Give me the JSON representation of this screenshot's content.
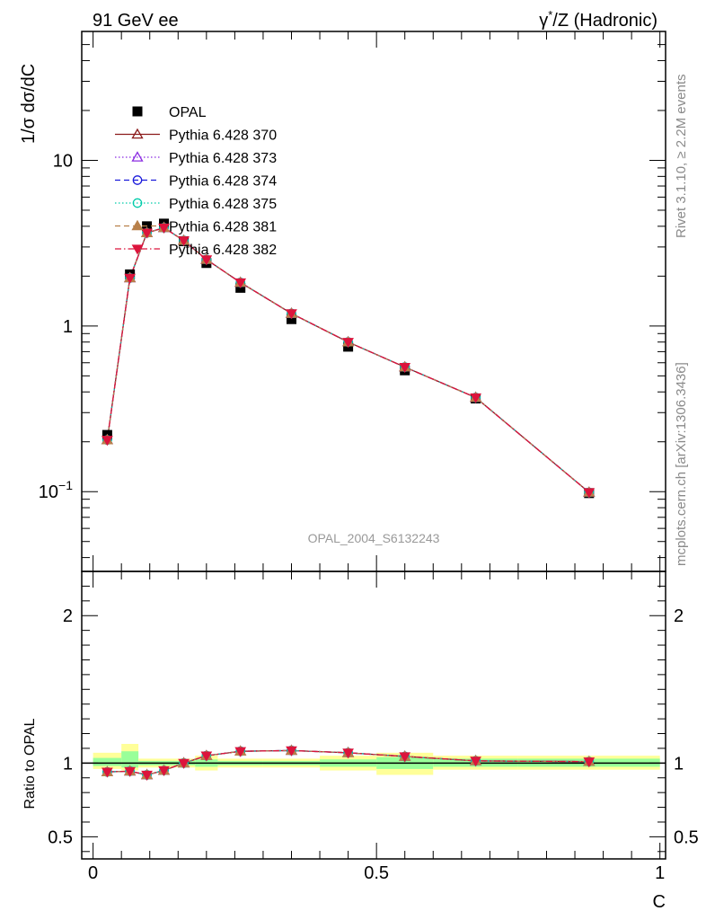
{
  "header": {
    "left": "91 GeV ee",
    "right_prefix": "γ",
    "right_sup": "*",
    "right_suffix": "/Z (Hadronic)"
  },
  "side_labels": {
    "rivet": "Rivet 3.1.10, ≥ 2.2M events",
    "mcplots": "mcplots.cern.ch [arXiv:1306.3436]"
  },
  "watermark": "OPAL_2004_S6132243",
  "colors": {
    "data": "#000000",
    "yellow_band": "#ffff99",
    "green_band": "#99ff99"
  },
  "chart_data": [
    {
      "type": "line",
      "panel": "main",
      "ylabel": "1/σ dσ/dC",
      "yscale": "log",
      "ylim": [
        0.033,
        60
      ],
      "xlim": [
        -0.02,
        1.01
      ],
      "y_tick_labels": [
        {
          "value": 10,
          "label": "10"
        },
        {
          "value": 1,
          "label": "1"
        },
        {
          "value": 0.1,
          "label_base": "10",
          "label_exp": "−1"
        }
      ],
      "legend_position": "top-left",
      "x": [
        0.025,
        0.065,
        0.095,
        0.125,
        0.16,
        0.2,
        0.26,
        0.35,
        0.45,
        0.55,
        0.675,
        0.875
      ],
      "data": {
        "name": "OPAL",
        "values": [
          0.22,
          2.05,
          4.0,
          4.15,
          3.25,
          2.4,
          1.7,
          1.1,
          0.75,
          0.54,
          0.365,
          0.098
        ]
      },
      "series": [
        {
          "name": "Pythia 6.428 370",
          "color": "#8b1a1a",
          "style": "solid",
          "marker": "triangle-up-open",
          "values": [
            0.205,
            1.95,
            3.65,
            3.92,
            3.28,
            2.52,
            1.83,
            1.19,
            0.8,
            0.565,
            0.37,
            0.099
          ]
        },
        {
          "name": "Pythia 6.428 373",
          "color": "#8a2be2",
          "style": "dotted",
          "marker": "triangle-up-open",
          "values": [
            0.205,
            1.95,
            3.65,
            3.92,
            3.28,
            2.52,
            1.83,
            1.19,
            0.8,
            0.565,
            0.37,
            0.099
          ]
        },
        {
          "name": "Pythia 6.428 374",
          "color": "#1a1adb",
          "style": "dashed",
          "marker": "circle-open",
          "values": [
            0.205,
            1.95,
            3.65,
            3.92,
            3.28,
            2.52,
            1.83,
            1.19,
            0.8,
            0.565,
            0.37,
            0.099
          ]
        },
        {
          "name": "Pythia 6.428 375",
          "color": "#00ccaa",
          "style": "dotted",
          "marker": "circle-open",
          "values": [
            0.205,
            1.95,
            3.65,
            3.92,
            3.28,
            2.52,
            1.83,
            1.19,
            0.8,
            0.565,
            0.37,
            0.099
          ]
        },
        {
          "name": "Pythia 6.428 381",
          "color": "#b8804a",
          "style": "dashed",
          "marker": "triangle-up-filled",
          "values": [
            0.205,
            1.95,
            3.65,
            3.92,
            3.28,
            2.52,
            1.83,
            1.19,
            0.8,
            0.565,
            0.37,
            0.099
          ]
        },
        {
          "name": "Pythia 6.428 382",
          "color": "#dc143c",
          "style": "dashdot",
          "marker": "triangle-down-filled",
          "values": [
            0.205,
            1.95,
            3.65,
            3.92,
            3.28,
            2.52,
            1.83,
            1.19,
            0.8,
            0.565,
            0.37,
            0.099
          ]
        }
      ]
    },
    {
      "type": "line",
      "panel": "ratio",
      "ylabel": "Ratio to OPAL",
      "xlabel": "C",
      "ylim": [
        0.35,
        2.3
      ],
      "xlim": [
        -0.02,
        1.01
      ],
      "y_tick_labels": [
        {
          "value": 2,
          "label": "2"
        },
        {
          "value": 1,
          "label": "1"
        },
        {
          "value": 0.5,
          "label": "0.5"
        }
      ],
      "x_tick_labels": [
        {
          "value": 0,
          "label": "0"
        },
        {
          "value": 0.5,
          "label": "0.5"
        },
        {
          "value": 1,
          "label": "1"
        }
      ],
      "bins": [
        {
          "lo": 0.0,
          "hi": 0.05,
          "yellow": [
            0.96,
            1.07
          ],
          "green": [
            0.98,
            1.035
          ]
        },
        {
          "lo": 0.05,
          "hi": 0.08,
          "yellow": [
            0.95,
            1.13
          ],
          "green": [
            0.97,
            1.08
          ]
        },
        {
          "lo": 0.08,
          "hi": 0.11,
          "yellow": [
            0.97,
            1.03
          ],
          "green": [
            0.985,
            1.015
          ]
        },
        {
          "lo": 0.11,
          "hi": 0.14,
          "yellow": [
            0.97,
            1.03
          ],
          "green": [
            0.985,
            1.015
          ]
        },
        {
          "lo": 0.14,
          "hi": 0.18,
          "yellow": [
            0.97,
            1.03
          ],
          "green": [
            0.985,
            1.015
          ]
        },
        {
          "lo": 0.18,
          "hi": 0.22,
          "yellow": [
            0.95,
            1.05
          ],
          "green": [
            0.975,
            1.025
          ]
        },
        {
          "lo": 0.22,
          "hi": 0.3,
          "yellow": [
            0.97,
            1.03
          ],
          "green": [
            0.985,
            1.015
          ]
        },
        {
          "lo": 0.3,
          "hi": 0.4,
          "yellow": [
            0.97,
            1.03
          ],
          "green": [
            0.985,
            1.015
          ]
        },
        {
          "lo": 0.4,
          "hi": 0.5,
          "yellow": [
            0.95,
            1.05
          ],
          "green": [
            0.975,
            1.025
          ]
        },
        {
          "lo": 0.5,
          "hi": 0.6,
          "yellow": [
            0.92,
            1.07
          ],
          "green": [
            0.96,
            1.04
          ]
        },
        {
          "lo": 0.6,
          "hi": 0.75,
          "yellow": [
            0.955,
            1.05
          ],
          "green": [
            0.975,
            1.03
          ]
        },
        {
          "lo": 0.75,
          "hi": 1.0,
          "yellow": [
            0.955,
            1.05
          ],
          "green": [
            0.975,
            1.03
          ]
        }
      ],
      "x": [
        0.025,
        0.065,
        0.095,
        0.125,
        0.16,
        0.2,
        0.26,
        0.35,
        0.45,
        0.55,
        0.675,
        0.875
      ],
      "values": [
        0.94,
        0.945,
        0.92,
        0.95,
        1.0,
        1.05,
        1.08,
        1.085,
        1.07,
        1.045,
        1.015,
        1.01
      ]
    }
  ]
}
